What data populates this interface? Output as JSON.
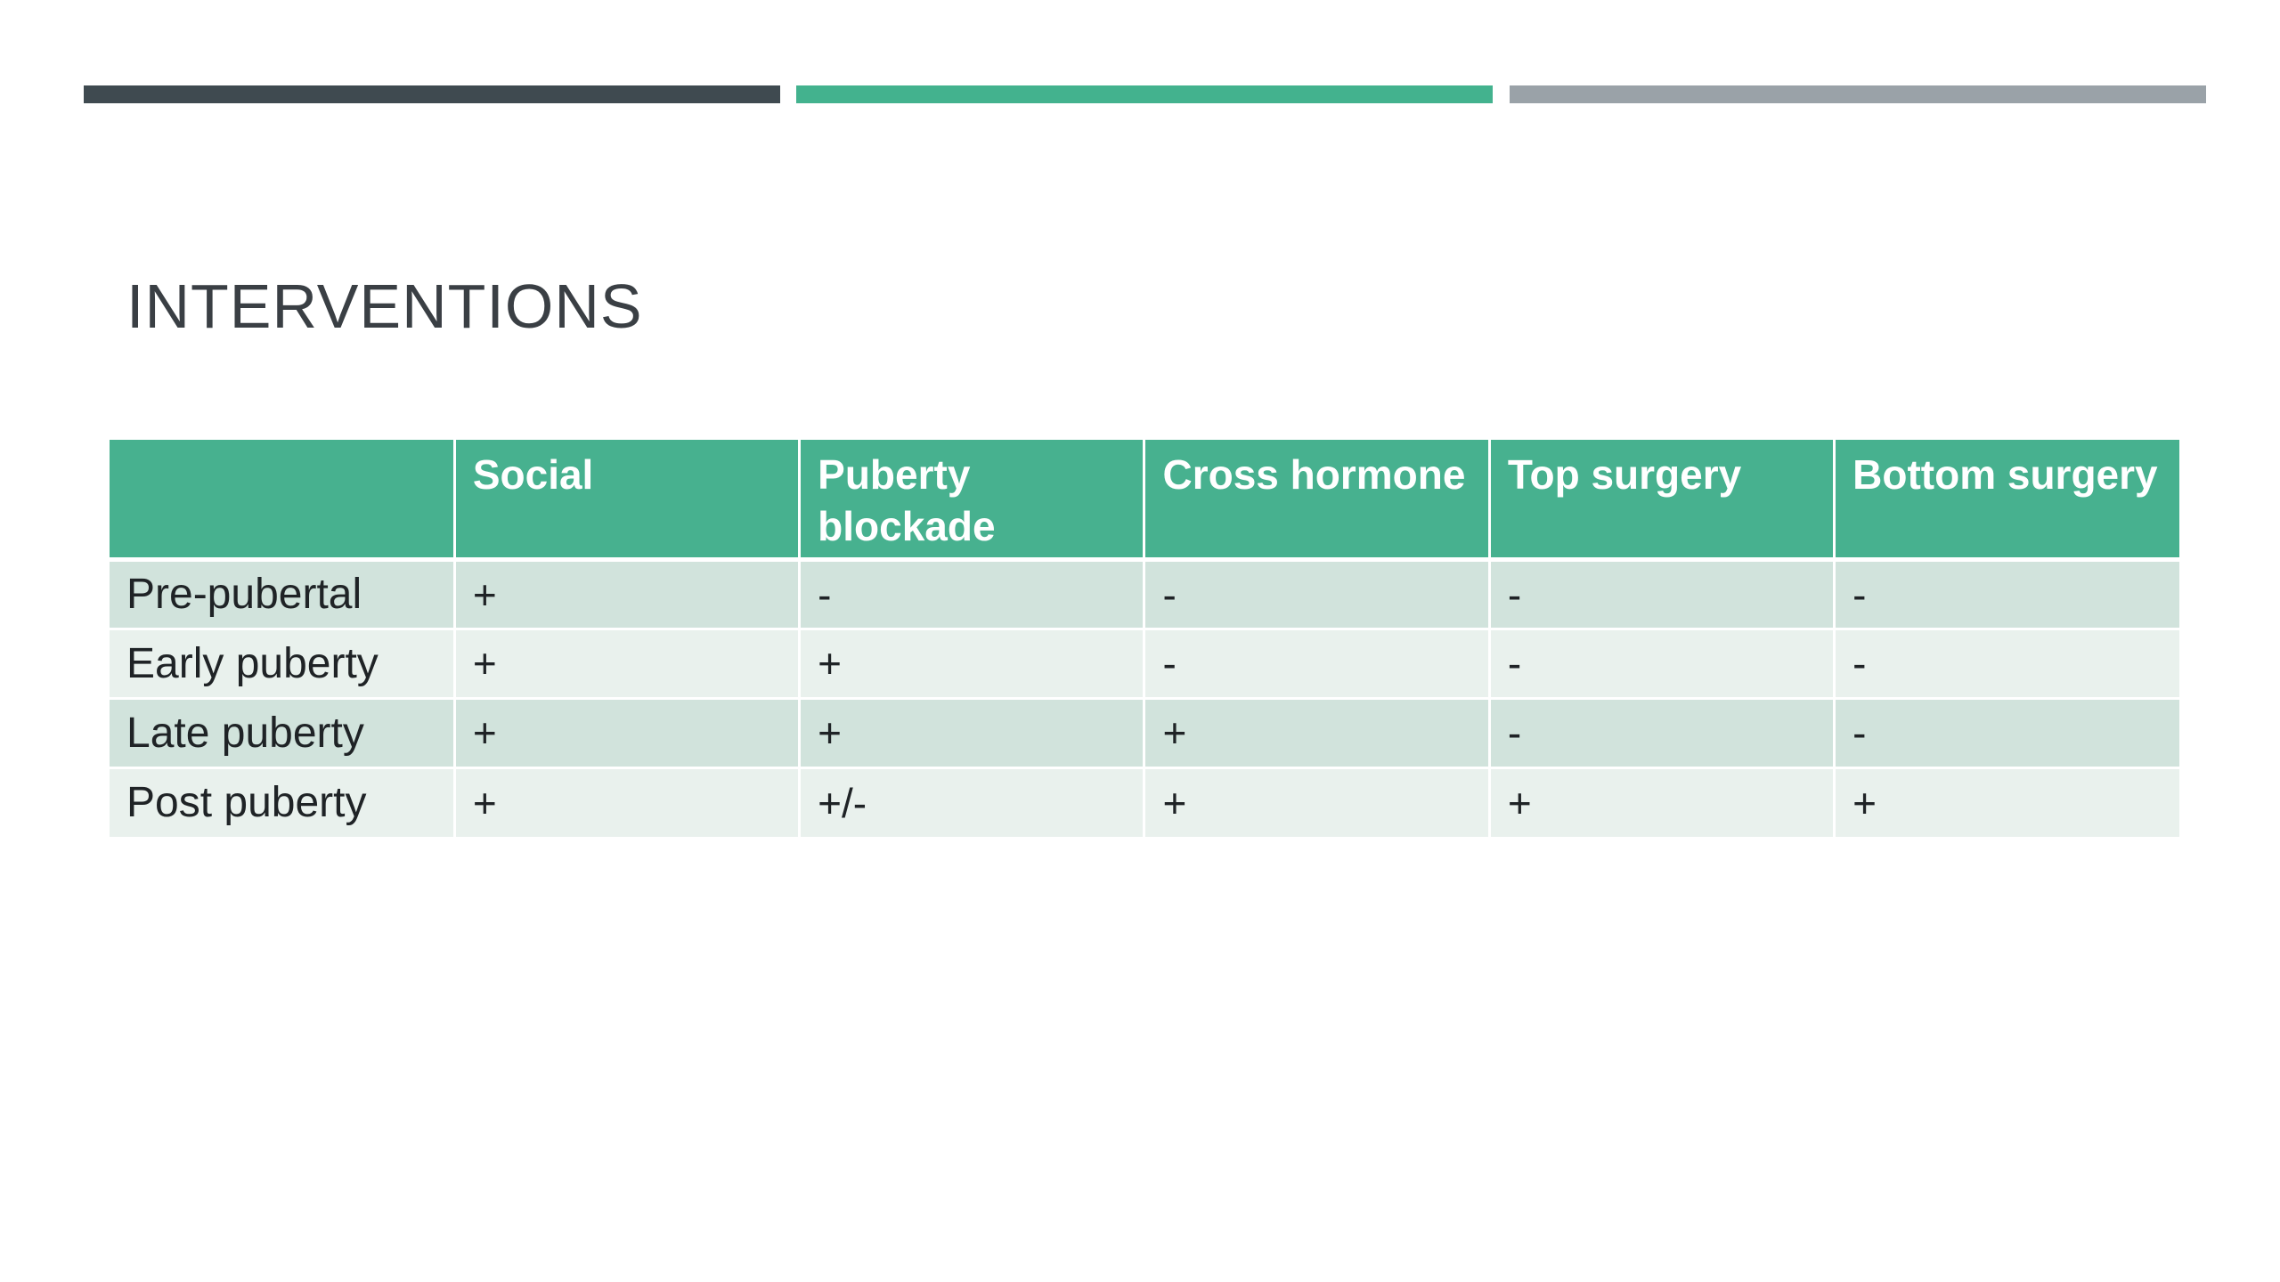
{
  "colors": {
    "bar_dark": "#3f4a50",
    "bar_teal": "#43b28e",
    "bar_gray": "#9aa2a8",
    "header_bg": "#47b18f",
    "row_odd": "#d1e3dc",
    "row_even": "#e9f1ed"
  },
  "slide": {
    "title": "INTERVENTIONS"
  },
  "table": {
    "headers": [
      "",
      "Social",
      "Puberty blockade",
      "Cross hormone",
      "Top surgery",
      "Bottom surgery"
    ],
    "rows": [
      {
        "label": "Pre-pubertal",
        "cells": [
          "+",
          "-",
          "-",
          "-",
          "-"
        ]
      },
      {
        "label": "Early puberty",
        "cells": [
          "+",
          "+",
          "-",
          "-",
          "-"
        ]
      },
      {
        "label": "Late puberty",
        "cells": [
          "+",
          "+",
          "+",
          "-",
          "-"
        ]
      },
      {
        "label": "Post puberty",
        "cells": [
          "+",
          "+/-",
          "+",
          "+",
          "+"
        ]
      }
    ]
  }
}
